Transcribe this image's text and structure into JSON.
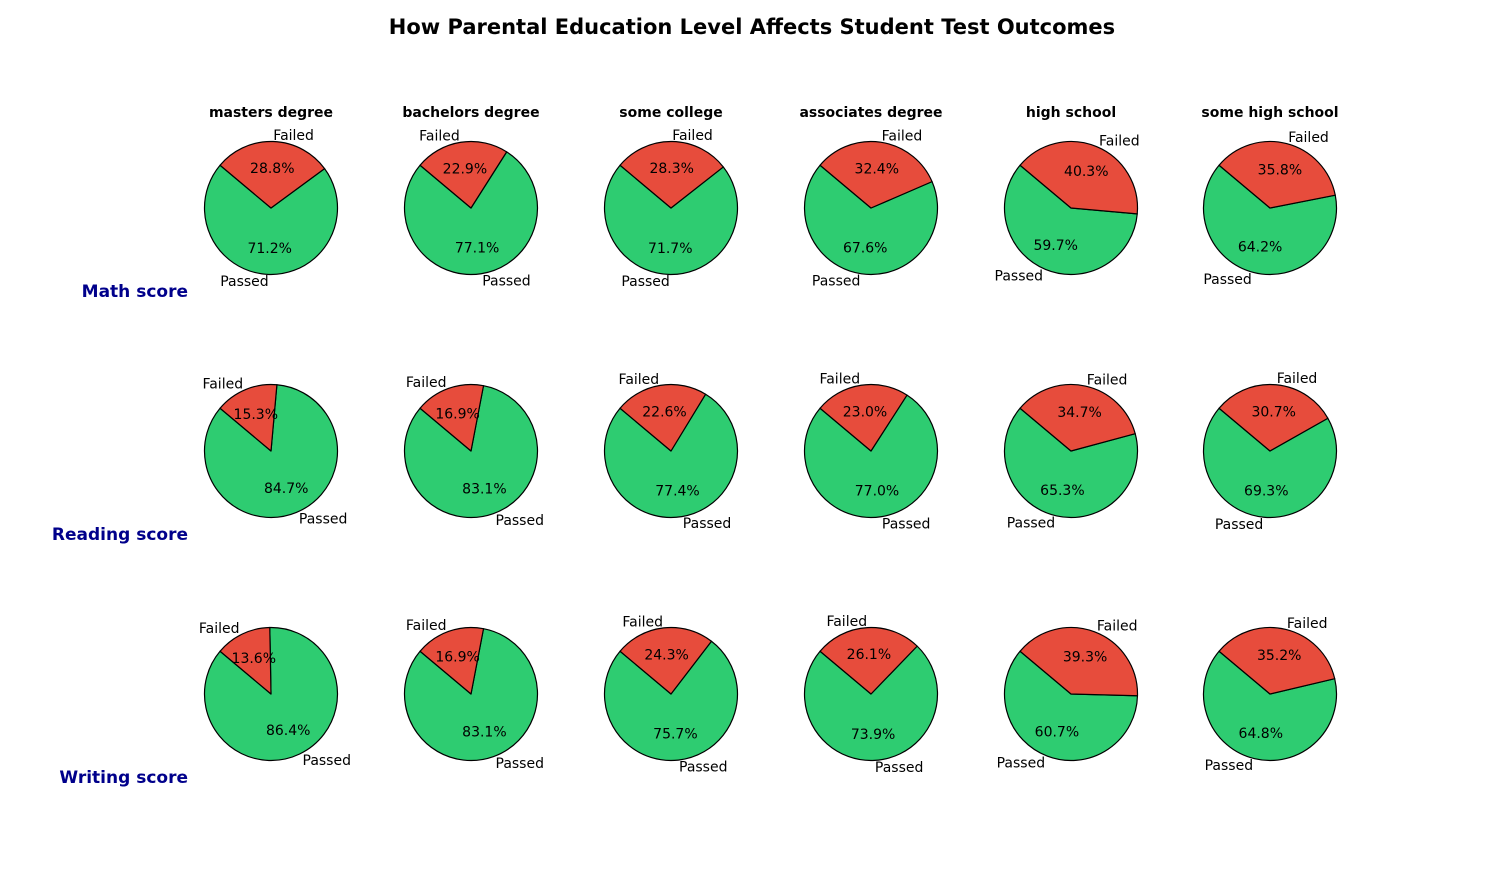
{
  "chart_data": {
    "type": "pie",
    "title": "How Parental Education Level Affects Student Test Outcomes",
    "columns": [
      "masters degree",
      "bachelors degree",
      "some college",
      "associates degree",
      "high school",
      "some high school"
    ],
    "rows": [
      "Math score",
      "Reading score",
      "Writing score"
    ],
    "slice_labels": [
      "Passed",
      "Failed"
    ],
    "colors": {
      "Passed": "#2ecc71",
      "Failed": "#e74c3c",
      "row_label": "#00008b",
      "edge": "#000000"
    },
    "values": [
      [
        {
          "passed": 71.2,
          "failed": 28.8,
          "passed_label": "71.2%",
          "failed_label": "28.8%"
        },
        {
          "passed": 77.1,
          "failed": 22.9,
          "passed_label": "77.1%",
          "failed_label": "22.9%"
        },
        {
          "passed": 71.7,
          "failed": 28.3,
          "passed_label": "71.7%",
          "failed_label": "28.3%"
        },
        {
          "passed": 67.6,
          "failed": 32.4,
          "passed_label": "67.6%",
          "failed_label": "32.4%"
        },
        {
          "passed": 59.7,
          "failed": 40.3,
          "passed_label": "59.7%",
          "failed_label": "40.3%"
        },
        {
          "passed": 64.2,
          "failed": 35.8,
          "passed_label": "64.2%",
          "failed_label": "35.8%"
        }
      ],
      [
        {
          "passed": 84.7,
          "failed": 15.3,
          "passed_label": "84.7%",
          "failed_label": "15.3%"
        },
        {
          "passed": 83.1,
          "failed": 16.9,
          "passed_label": "83.1%",
          "failed_label": "16.9%"
        },
        {
          "passed": 77.4,
          "failed": 22.6,
          "passed_label": "77.4%",
          "failed_label": "22.6%"
        },
        {
          "passed": 77.0,
          "failed": 23.0,
          "passed_label": "77.0%",
          "failed_label": "23.0%"
        },
        {
          "passed": 65.3,
          "failed": 34.7,
          "passed_label": "65.3%",
          "failed_label": "34.7%"
        },
        {
          "passed": 69.3,
          "failed": 30.7,
          "passed_label": "69.3%",
          "failed_label": "30.7%"
        }
      ],
      [
        {
          "passed": 86.4,
          "failed": 13.6,
          "passed_label": "86.4%",
          "failed_label": "13.6%"
        },
        {
          "passed": 83.1,
          "failed": 16.9,
          "passed_label": "83.1%",
          "failed_label": "16.9%"
        },
        {
          "passed": 75.7,
          "failed": 24.3,
          "passed_label": "75.7%",
          "failed_label": "24.3%"
        },
        {
          "passed": 73.9,
          "failed": 26.1,
          "passed_label": "73.9%",
          "failed_label": "26.1%"
        },
        {
          "passed": 60.7,
          "failed": 39.3,
          "passed_label": "60.7%",
          "failed_label": "39.3%"
        },
        {
          "passed": 64.8,
          "failed": 35.2,
          "passed_label": "64.8%",
          "failed_label": "35.2%"
        }
      ]
    ]
  }
}
